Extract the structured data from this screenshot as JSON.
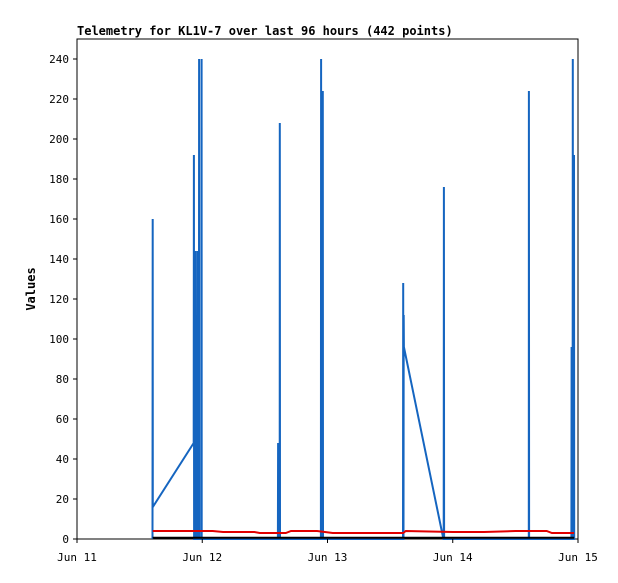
{
  "chart_data": {
    "type": "line",
    "title": "Telemetry for KL1V-7 over last 96 hours (442 points)",
    "xlabel": "",
    "ylabel": "Values",
    "xlim": [
      "2024-06-11T00:00",
      "2024-06-15T00:00"
    ],
    "ylim": [
      0,
      250
    ],
    "grid": false,
    "legend": "none",
    "x_ticks": [
      {
        "x": "2024-06-11T00:00",
        "label": "Jun 11"
      },
      {
        "x": "2024-06-12T00:00",
        "label": "Jun 12"
      },
      {
        "x": "2024-06-13T00:00",
        "label": "Jun 13"
      },
      {
        "x": "2024-06-14T00:00",
        "label": "Jun 14"
      },
      {
        "x": "2024-06-15T00:00",
        "label": "Jun 15"
      }
    ],
    "y_ticks": [
      0,
      20,
      40,
      60,
      80,
      100,
      120,
      140,
      160,
      180,
      200,
      220,
      240
    ],
    "series": [
      {
        "color": "#1565c0",
        "points": [
          [
            "2024-06-11T14:28",
            0
          ],
          [
            "2024-06-11T14:30",
            160
          ],
          [
            "2024-06-11T14:32",
            16
          ],
          [
            "2024-06-11T22:22",
            48
          ],
          [
            "2024-06-11T22:24",
            192
          ],
          [
            "2024-06-11T22:26",
            0
          ],
          [
            "2024-06-11T22:38",
            0
          ],
          [
            "2024-06-11T22:40",
            144
          ],
          [
            "2024-06-11T22:42",
            0
          ],
          [
            "2024-06-11T22:46",
            0
          ],
          [
            "2024-06-11T22:48",
            80
          ],
          [
            "2024-06-11T22:50",
            0
          ],
          [
            "2024-06-11T23:02",
            0
          ],
          [
            "2024-06-11T23:04",
            144
          ],
          [
            "2024-06-11T23:06",
            0
          ],
          [
            "2024-06-11T23:22",
            0
          ],
          [
            "2024-06-11T23:24",
            240
          ],
          [
            "2024-06-11T23:26",
            0
          ],
          [
            "2024-06-11T23:50",
            0
          ],
          [
            "2024-06-11T23:52",
            240
          ],
          [
            "2024-06-11T23:54",
            0
          ],
          [
            "2024-06-12T14:30",
            0
          ],
          [
            "2024-06-12T14:32",
            48
          ],
          [
            "2024-06-12T14:34",
            0
          ],
          [
            "2024-06-12T14:50",
            0
          ],
          [
            "2024-06-12T14:52",
            208
          ],
          [
            "2024-06-12T14:54",
            0
          ],
          [
            "2024-06-12T22:44",
            0
          ],
          [
            "2024-06-12T22:46",
            240
          ],
          [
            "2024-06-12T22:48",
            0
          ],
          [
            "2024-06-12T23:04",
            0
          ],
          [
            "2024-06-12T23:06",
            224
          ],
          [
            "2024-06-12T23:08",
            0
          ],
          [
            "2024-06-13T14:28",
            0
          ],
          [
            "2024-06-13T14:30",
            128
          ],
          [
            "2024-06-13T14:32",
            0
          ],
          [
            "2024-06-13T14:34",
            0
          ],
          [
            "2024-06-13T14:36",
            112
          ],
          [
            "2024-06-13T14:38",
            96
          ],
          [
            "2024-06-13T22:12",
            0
          ],
          [
            "2024-06-13T22:16",
            0
          ],
          [
            "2024-06-13T22:18",
            176
          ],
          [
            "2024-06-13T22:20",
            0
          ],
          [
            "2024-06-14T14:34",
            0
          ],
          [
            "2024-06-14T14:36",
            224
          ],
          [
            "2024-06-14T14:38",
            0
          ],
          [
            "2024-06-14T22:44",
            0
          ],
          [
            "2024-06-14T22:46",
            96
          ],
          [
            "2024-06-14T22:48",
            0
          ],
          [
            "2024-06-14T22:58",
            0
          ],
          [
            "2024-06-14T23:00",
            240
          ],
          [
            "2024-06-14T23:02",
            0
          ],
          [
            "2024-06-14T23:12",
            0
          ],
          [
            "2024-06-14T23:14",
            192
          ],
          [
            "2024-06-14T23:16",
            0
          ]
        ]
      },
      {
        "color": "#e00000",
        "points": [
          [
            "2024-06-11T14:30",
            4
          ],
          [
            "2024-06-12T02:00",
            4
          ],
          [
            "2024-06-12T04:00",
            3.5
          ],
          [
            "2024-06-12T10:00",
            3.5
          ],
          [
            "2024-06-12T11:00",
            3
          ],
          [
            "2024-06-12T16:00",
            3
          ],
          [
            "2024-06-12T17:00",
            4
          ],
          [
            "2024-06-12T22:00",
            4
          ],
          [
            "2024-06-13T01:00",
            3
          ],
          [
            "2024-06-13T14:30",
            3
          ],
          [
            "2024-06-13T15:00",
            4
          ],
          [
            "2024-06-14T00:00",
            3.5
          ],
          [
            "2024-06-14T06:00",
            3.5
          ],
          [
            "2024-06-14T12:00",
            4
          ],
          [
            "2024-06-14T18:00",
            4
          ],
          [
            "2024-06-14T19:00",
            3
          ],
          [
            "2024-06-14T23:15",
            3
          ]
        ]
      },
      {
        "color": "#000000",
        "points": [
          [
            "2024-06-11T14:30",
            0.6
          ],
          [
            "2024-06-14T23:15",
            0.6
          ]
        ]
      }
    ]
  }
}
